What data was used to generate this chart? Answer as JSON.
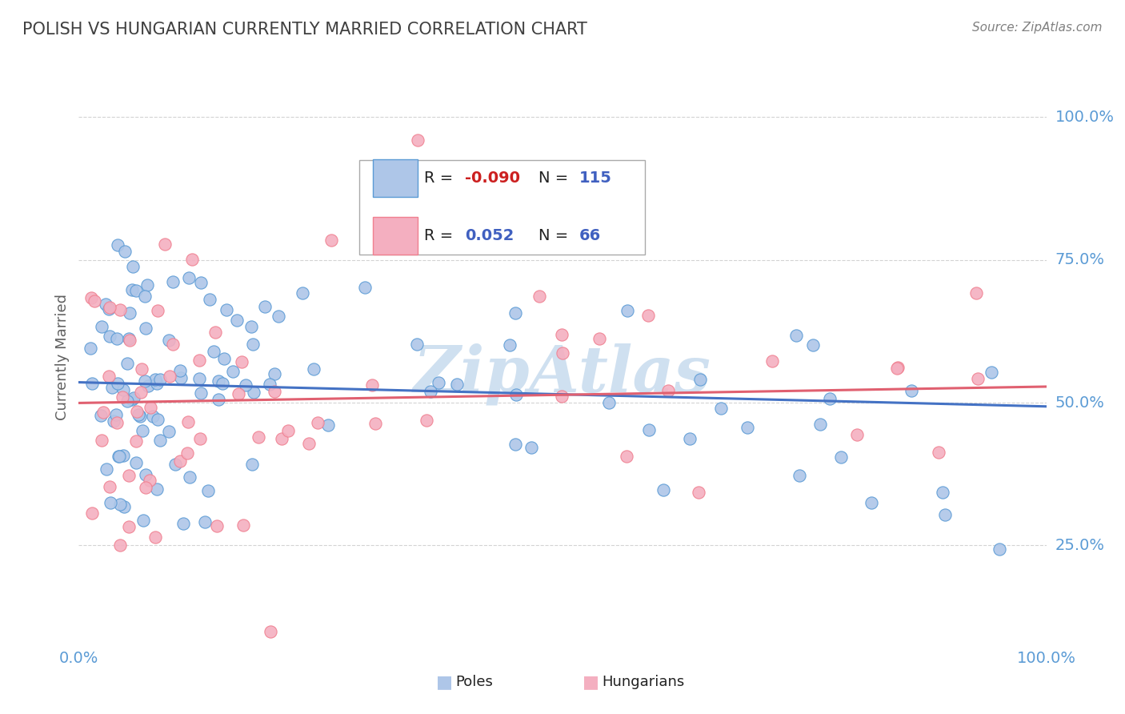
{
  "title": "POLISH VS HUNGARIAN CURRENTLY MARRIED CORRELATION CHART",
  "source": "Source: ZipAtlas.com",
  "ylabel": "Currently Married",
  "poles_R": -0.09,
  "poles_N": 115,
  "hung_R": 0.052,
  "hung_N": 66,
  "poles_color": "#aec6e8",
  "hung_color": "#f4afc0",
  "poles_edge_color": "#5b9bd5",
  "hung_edge_color": "#f08090",
  "poles_line_color": "#4472c4",
  "hung_line_color": "#e06070",
  "bg_color": "#ffffff",
  "grid_color": "#c8c8c8",
  "watermark_color": "#cfe0f0",
  "title_color": "#404040",
  "axis_tick_color": "#5b9bd5",
  "R_neg_color": "#cc2020",
  "R_pos_color": "#4060c0",
  "N_color": "#4060c0",
  "legend_text_color": "#222222",
  "source_color": "#808080",
  "ylabel_color": "#606060",
  "xlim": [
    0.0,
    1.0
  ],
  "ylim": [
    0.08,
    1.08
  ],
  "ytick_vals": [
    0.25,
    0.5,
    0.75,
    1.0
  ],
  "xtick_vals": [
    0.0,
    1.0
  ],
  "seed": 12345
}
